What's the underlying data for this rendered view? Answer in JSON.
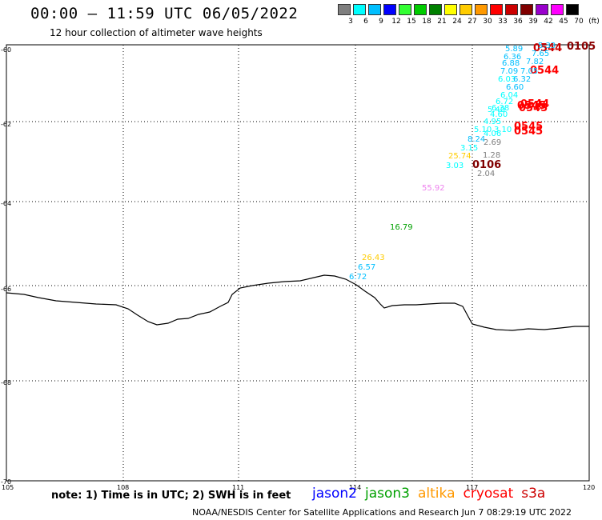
{
  "header": {
    "title": "00:00 – 11:59 UTC 06/05/2022",
    "subtitle": "12 hour collection of altimeter wave heights"
  },
  "scale": {
    "labels": [
      "3",
      "6",
      "9",
      "12",
      "15",
      "18",
      "21",
      "24",
      "27",
      "30",
      "33",
      "36",
      "39",
      "42",
      "45",
      "70",
      "(ft)"
    ],
    "colors": [
      "#7f7f7f",
      "#00ffff",
      "#00bfff",
      "#0000ff",
      "#33ff33",
      "#00cc00",
      "#008000",
      "#ffff00",
      "#ffcc00",
      "#ff9900",
      "#ff0000",
      "#cc0000",
      "#800000",
      "#9900cc",
      "#ff00ff",
      "#000000"
    ]
  },
  "axes": {
    "lat_labels": [
      "-60",
      "-62",
      "-64",
      "-66",
      "-68",
      "-70"
    ],
    "lon_labels": [
      "105",
      "108",
      "111",
      "114",
      "117",
      "120"
    ]
  },
  "wave_labels": [
    {
      "text": "0105",
      "color": "#8b0000",
      "bold": true
    },
    {
      "text": "0544",
      "color": "#cc0000",
      "bold": true
    },
    {
      "text": "0544",
      "color": "#ff0000",
      "bold": true
    },
    {
      "text": "0544",
      "color": "#ff0000",
      "bold": true
    },
    {
      "text": "0545",
      "color": "#ff0000",
      "bold": true
    },
    {
      "text": "0545",
      "color": "#ff0000",
      "bold": true
    },
    {
      "text": "0545",
      "color": "#ff0000",
      "bold": true
    },
    {
      "text": "0545",
      "color": "#ff0000",
      "bold": true
    },
    {
      "text": "0106",
      "color": "#800000",
      "bold": true
    },
    {
      "text": "5.89",
      "color": "#00bfff"
    },
    {
      "text": "5.33",
      "color": "#00bfff"
    },
    {
      "text": "6.36",
      "color": "#00bfff"
    },
    {
      "text": "7.65",
      "color": "#00bfff"
    },
    {
      "text": "6.88",
      "color": "#00bfff"
    },
    {
      "text": "7.82",
      "color": "#00bfff"
    },
    {
      "text": "7.09",
      "color": "#00bfff"
    },
    {
      "text": "7.05",
      "color": "#00bfff"
    },
    {
      "text": "6.03",
      "color": "#00ffff"
    },
    {
      "text": "6.32",
      "color": "#00bfff"
    },
    {
      "text": "6.60",
      "color": "#00bfff"
    },
    {
      "text": "6.04",
      "color": "#00ffff"
    },
    {
      "text": "6.72",
      "color": "#00ffff"
    },
    {
      "text": "6.38",
      "color": "#00ffff"
    },
    {
      "text": "4.60",
      "color": "#00ffff"
    },
    {
      "text": "5.40",
      "color": "#00ffff"
    },
    {
      "text": "4.95",
      "color": "#00ffff"
    },
    {
      "text": "5.10",
      "color": "#00ffff"
    },
    {
      "text": "3.10",
      "color": "#00ffff"
    },
    {
      "text": "4.06",
      "color": "#00ffff"
    },
    {
      "text": "8.24",
      "color": "#00bfff"
    },
    {
      "text": "2.69",
      "color": "#7f7f7f"
    },
    {
      "text": "3.15",
      "color": "#00ffff"
    },
    {
      "text": "25.74",
      "color": "#ffcc00"
    },
    {
      "text": "1.28",
      "color": "#7f7f7f"
    },
    {
      "text": "3.03",
      "color": "#00ffff"
    },
    {
      "text": "2.04",
      "color": "#7f7f7f"
    },
    {
      "text": "55.92",
      "color": "#ee82ee"
    },
    {
      "text": "16.79",
      "color": "#00a000"
    },
    {
      "text": "26.43",
      "color": "#ffcc00"
    },
    {
      "text": "6.57",
      "color": "#00bfff"
    },
    {
      "text": "6.72",
      "color": "#00bfff"
    }
  ],
  "footer": {
    "note": "note: 1) Time is in UTC; 2) SWH is in feet",
    "satellites": [
      {
        "name": "jason2",
        "color": "#0000ff"
      },
      {
        "name": "jason3",
        "color": "#00a000"
      },
      {
        "name": "altika",
        "color": "#ff9900"
      },
      {
        "name": "cryosat",
        "color": "#ff0000"
      },
      {
        "name": "s3a",
        "color": "#cc0000"
      }
    ],
    "credit": "NOAA/NESDIS Center for Satellite Applications and Research    Jun  7 08:29:19 UTC 2022"
  }
}
